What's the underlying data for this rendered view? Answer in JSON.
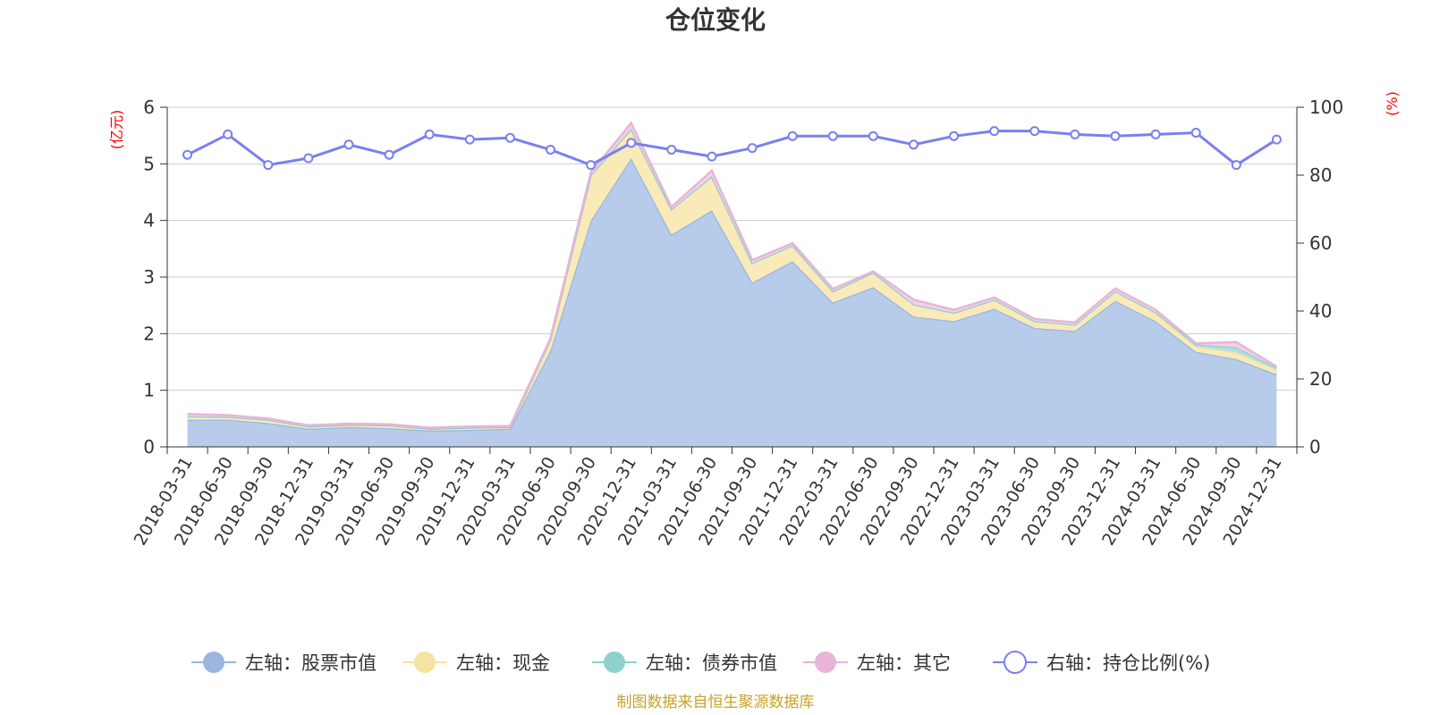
{
  "chart_data": {
    "type": "area",
    "title": "仓位变化",
    "left_axis_unit": "(亿元)",
    "right_axis_unit": "(%)",
    "left_ylim": [
      0,
      6
    ],
    "left_ticks": [
      "0",
      "1",
      "2",
      "3",
      "4",
      "5",
      "6"
    ],
    "right_ylim": [
      0,
      100
    ],
    "right_ticks": [
      "0",
      "20",
      "40",
      "60",
      "80",
      "100"
    ],
    "categories": [
      "2018-03-31",
      "2018-06-30",
      "2018-09-30",
      "2018-12-31",
      "2019-03-31",
      "2019-06-30",
      "2019-09-30",
      "2019-12-31",
      "2020-03-31",
      "2020-06-30",
      "2020-09-30",
      "2020-12-31",
      "2021-03-31",
      "2021-06-30",
      "2021-09-30",
      "2021-12-31",
      "2022-03-31",
      "2022-06-30",
      "2022-09-30",
      "2022-12-31",
      "2023-03-31",
      "2023-06-30",
      "2023-09-30",
      "2023-12-31",
      "2024-03-31",
      "2024-06-30",
      "2024-09-30",
      "2024-12-31"
    ],
    "series": [
      {
        "name": "左轴：股票市值",
        "axis": "left",
        "type": "area",
        "color": "#9ab6e0",
        "fill": "#b7cceb",
        "values": [
          0.48,
          0.48,
          0.42,
          0.32,
          0.35,
          0.33,
          0.29,
          0.3,
          0.32,
          1.7,
          4.0,
          5.1,
          3.75,
          4.18,
          2.9,
          3.28,
          2.55,
          2.82,
          2.3,
          2.22,
          2.44,
          2.1,
          2.05,
          2.58,
          2.22,
          1.68,
          1.55,
          1.28
        ]
      },
      {
        "name": "左轴：现金",
        "axis": "left",
        "type": "area",
        "color": "#f6e3a1",
        "fill": "#f9eab8",
        "values": [
          0.06,
          0.05,
          0.06,
          0.04,
          0.04,
          0.05,
          0.03,
          0.04,
          0.03,
          0.2,
          0.8,
          0.5,
          0.45,
          0.6,
          0.35,
          0.28,
          0.2,
          0.26,
          0.22,
          0.15,
          0.16,
          0.12,
          0.11,
          0.17,
          0.14,
          0.09,
          0.12,
          0.08
        ]
      },
      {
        "name": "左轴：债券市值",
        "axis": "left",
        "type": "area",
        "color": "#8fd0cc",
        "fill": "#b3e0dc",
        "values": [
          0,
          0,
          0,
          0,
          0,
          0,
          0,
          0,
          0,
          0,
          0,
          0.02,
          0,
          0,
          0,
          0,
          0,
          0,
          0,
          0,
          0,
          0,
          0,
          0,
          0.02,
          0.04,
          0.09,
          0.04
        ]
      },
      {
        "name": "左轴：其它",
        "axis": "left",
        "type": "area",
        "color": "#e8b4d8",
        "fill": "#f2d2e8",
        "values": [
          0.04,
          0.03,
          0.02,
          0.02,
          0.02,
          0.02,
          0.02,
          0.02,
          0.02,
          0.02,
          0.05,
          0.1,
          0.04,
          0.1,
          0.05,
          0.04,
          0.04,
          0.02,
          0.08,
          0.05,
          0.04,
          0.04,
          0.04,
          0.05,
          0.04,
          0.02,
          0.09,
          0.02
        ]
      },
      {
        "name": "右轴：持仓比例(%)",
        "axis": "right",
        "type": "line",
        "color": "#7b7ff0",
        "values": [
          86,
          92,
          83,
          85,
          89,
          86,
          92,
          90.5,
          91,
          87.5,
          83,
          89.5,
          87.5,
          85.5,
          88,
          91.5,
          91.5,
          91.5,
          89,
          91.5,
          93,
          93,
          92,
          91.5,
          92,
          92.5,
          83,
          90.5
        ]
      }
    ],
    "legend": [
      "左轴：股票市值",
      "左轴：现金",
      "左轴：债券市值",
      "左轴：其它",
      "右轴：持仓比例(%)"
    ],
    "legend_position": "bottom",
    "source_note": "制图数据来自恒生聚源数据库"
  }
}
